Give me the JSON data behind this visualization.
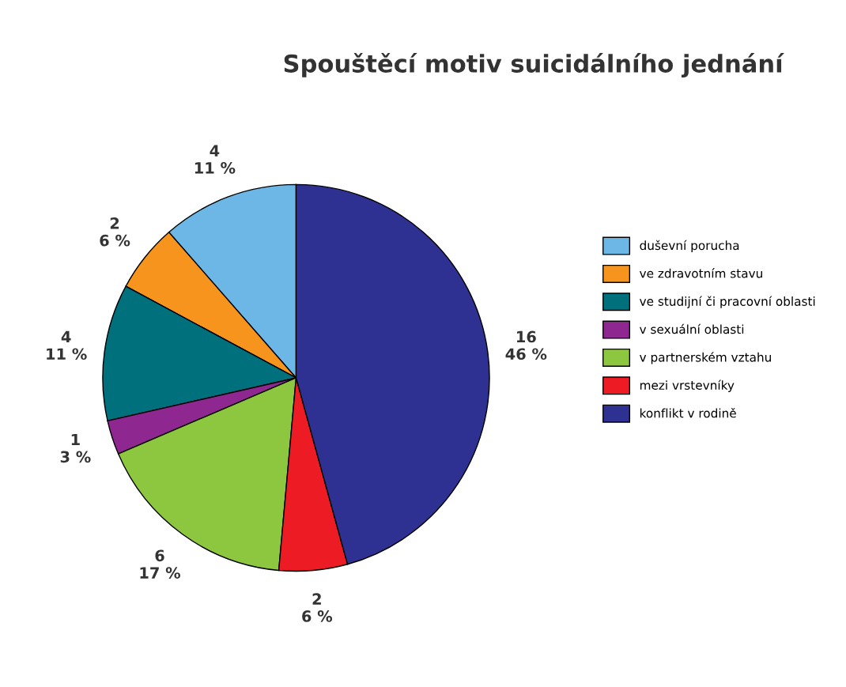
{
  "chart_data": {
    "type": "pie",
    "title": "Spouštěcí motiv suicidálního jednání",
    "categories": [
      "duševní porucha",
      "ve zdravotním stavu",
      "ve studijní či pracovní oblasti",
      "v sexuální oblasti",
      "v partnerském vztahu",
      "mezi vrstevníky",
      "konflikt v rodině"
    ],
    "values": [
      4,
      2,
      4,
      1,
      6,
      2,
      16
    ],
    "value_labels": [
      "4\n11 %",
      "2\n6 %",
      "4\n11 %",
      "1\n3 %",
      "6\n17 %",
      "2\n6 %",
      "16\n46 %"
    ],
    "colors": [
      "#6cb7e6",
      "#f7941d",
      "#00707c",
      "#8e278f",
      "#8dc63f",
      "#ed1c24",
      "#2e3192"
    ],
    "legend": "right"
  }
}
